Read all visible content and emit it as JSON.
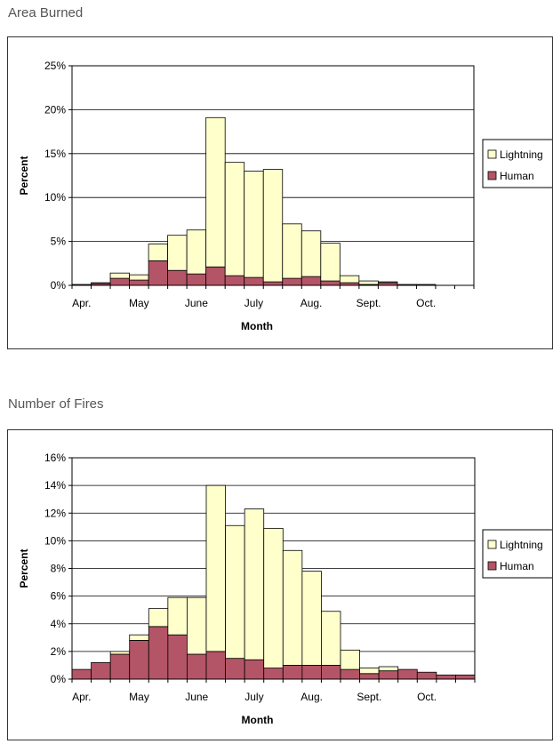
{
  "colors": {
    "lightning": "#ffffcc",
    "human": "#b45567",
    "grid": "#000000"
  },
  "charts": [
    {
      "section_title": "Area Burned",
      "chart_data": {
        "type": "bar",
        "stacked": true,
        "xlabel": "Month",
        "ylabel": "Percent",
        "ylim": [
          0,
          25
        ],
        "yticks": [
          "0%",
          "5%",
          "10%",
          "15%",
          "20%",
          "25%"
        ],
        "ytick_values": [
          0,
          5,
          10,
          15,
          20,
          25
        ],
        "month_labels": [
          "Apr.",
          "May",
          "June",
          "July",
          "Aug.",
          "Sept.",
          "Oct."
        ],
        "legend": [
          "Lightning",
          "Human"
        ],
        "legend_position": "right",
        "series": [
          {
            "name": "Human",
            "values": [
              0.1,
              0.2,
              0.8,
              0.6,
              2.8,
              1.7,
              1.3,
              2.1,
              1.1,
              0.9,
              0.4,
              0.8,
              1.0,
              0.5,
              0.3,
              0.1,
              0.3,
              0.1,
              0.1,
              0.0,
              0.0
            ]
          },
          {
            "name": "Lightning",
            "values": [
              0.0,
              0.1,
              0.6,
              0.6,
              1.9,
              4.0,
              5.0,
              17.0,
              12.9,
              12.1,
              12.8,
              6.2,
              5.2,
              4.3,
              0.8,
              0.4,
              0.1,
              0.0,
              0.0,
              0.0,
              0.0
            ]
          }
        ]
      }
    },
    {
      "section_title": "Number of Fires",
      "chart_data": {
        "type": "bar",
        "stacked": true,
        "xlabel": "Month",
        "ylabel": "Percent",
        "ylim": [
          0,
          16
        ],
        "yticks": [
          "0%",
          "2%",
          "4%",
          "6%",
          "8%",
          "10%",
          "12%",
          "14%",
          "16%"
        ],
        "ytick_values": [
          0,
          2,
          4,
          6,
          8,
          10,
          12,
          14,
          16
        ],
        "month_labels": [
          "Apr.",
          "May",
          "June",
          "July",
          "Aug.",
          "Sept.",
          "Oct."
        ],
        "legend": [
          "Lightning",
          "Human"
        ],
        "legend_position": "right",
        "series": [
          {
            "name": "Human",
            "values": [
              0.7,
              1.2,
              1.8,
              2.8,
              3.8,
              3.2,
              1.8,
              2.0,
              1.5,
              1.4,
              0.8,
              1.0,
              1.0,
              1.0,
              0.7,
              0.4,
              0.6,
              0.7,
              0.5,
              0.3,
              0.3
            ]
          },
          {
            "name": "Lightning",
            "values": [
              0.0,
              0.0,
              0.2,
              0.4,
              1.3,
              2.7,
              4.1,
              12.0,
              9.6,
              10.9,
              10.1,
              8.3,
              6.8,
              3.9,
              1.4,
              0.4,
              0.3,
              0.0,
              0.0,
              0.0,
              0.0
            ]
          }
        ]
      }
    }
  ]
}
